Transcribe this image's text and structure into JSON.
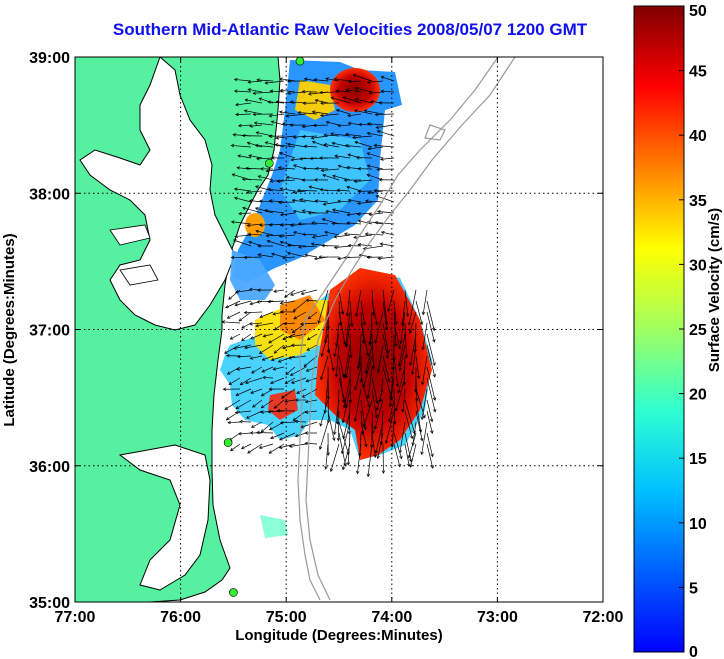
{
  "title": "Southern Mid-Atlantic Raw Velocities 2008/05/07 1200 GMT",
  "x_axis": {
    "label": "Longitude (Degrees:Minutes)",
    "ticks": [
      "77:00",
      "76:00",
      "75:00",
      "74:00",
      "73:00",
      "72:00"
    ]
  },
  "y_axis": {
    "label": "Latitude (Degrees:Minutes)",
    "ticks": [
      "39:00",
      "38:00",
      "37:00",
      "36:00",
      "35:00"
    ]
  },
  "colorbar": {
    "label": "Surface Velocity (cm/s)",
    "ticks": [
      "50",
      "45",
      "40",
      "35",
      "30",
      "25",
      "20",
      "15",
      "10",
      "5",
      "0"
    ],
    "range": [
      0,
      50
    ],
    "colormap": "jet"
  },
  "colors": {
    "title": "#1010ee",
    "land": "#55f0a0",
    "coastline": "#000000",
    "isobath": "#999999",
    "grid": "#000000",
    "station": "#33ee33"
  },
  "map": {
    "lon_range": [
      -77,
      -72
    ],
    "lat_range": [
      35,
      39
    ],
    "grid": "dotted"
  },
  "radar_stations": [
    {
      "lon": -74.87,
      "lat": 38.97
    },
    {
      "lon": -75.16,
      "lat": 38.22
    },
    {
      "lon": -75.55,
      "lat": 36.17
    },
    {
      "lon": -75.5,
      "lat": 35.07
    }
  ]
}
